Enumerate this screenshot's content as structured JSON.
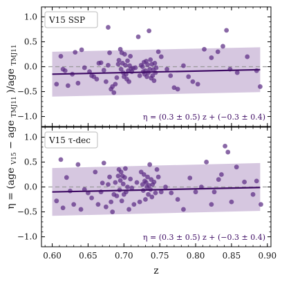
{
  "chart_data": [
    {
      "type": "scatter",
      "panel_label": "V15 SSP",
      "fit_label": "η = (0.3 ± 0.5) z + (−0.3 ± 0.4)",
      "fit_line": {
        "x": [
          0.6,
          0.89
        ],
        "y": [
          -0.15,
          -0.06
        ]
      },
      "band": {
        "x": [
          0.6,
          0.89
        ],
        "upper": [
          0.3,
          0.39
        ],
        "lower": [
          -0.6,
          -0.51
        ]
      },
      "reference_line_y": 0.0,
      "points": [
        [
          0.606,
          -0.35
        ],
        [
          0.612,
          0.21
        ],
        [
          0.615,
          -0.05
        ],
        [
          0.618,
          -0.08
        ],
        [
          0.622,
          -0.38
        ],
        [
          0.628,
          -0.15
        ],
        [
          0.632,
          0.29
        ],
        [
          0.636,
          -0.33
        ],
        [
          0.641,
          0.34
        ],
        [
          0.645,
          -0.02
        ],
        [
          0.652,
          -0.1
        ],
        [
          0.655,
          -0.18
        ],
        [
          0.658,
          -0.2
        ],
        [
          0.662,
          -0.25
        ],
        [
          0.665,
          0.07
        ],
        [
          0.668,
          0.08
        ],
        [
          0.672,
          -0.07
        ],
        [
          0.675,
          -0.3
        ],
        [
          0.678,
          0.03
        ],
        [
          0.678,
          0.79
        ],
        [
          0.68,
          0.28
        ],
        [
          0.682,
          -0.45
        ],
        [
          0.684,
          -0.4
        ],
        [
          0.686,
          -0.52
        ],
        [
          0.688,
          -0.35
        ],
        [
          0.69,
          -0.22
        ],
        [
          0.692,
          0.05
        ],
        [
          0.693,
          0.13
        ],
        [
          0.695,
          0.35
        ],
        [
          0.696,
          -0.05
        ],
        [
          0.697,
          0.28
        ],
        [
          0.698,
          0.07
        ],
        [
          0.699,
          -0.12
        ],
        [
          0.7,
          -0.2
        ],
        [
          0.701,
          0.25
        ],
        [
          0.702,
          0.03
        ],
        [
          0.703,
          -0.15
        ],
        [
          0.704,
          -0.25
        ],
        [
          0.705,
          0.12
        ],
        [
          0.706,
          -0.08
        ],
        [
          0.707,
          -0.3
        ],
        [
          0.708,
          0.02
        ],
        [
          0.709,
          0.21
        ],
        [
          0.71,
          -0.04
        ],
        [
          0.711,
          -0.1
        ],
        [
          0.713,
          -0.03
        ],
        [
          0.716,
          -0.02
        ],
        [
          0.72,
          0.6
        ],
        [
          0.722,
          -0.18
        ],
        [
          0.724,
          0.03
        ],
        [
          0.726,
          0.0
        ],
        [
          0.727,
          -0.1
        ],
        [
          0.728,
          0.09
        ],
        [
          0.729,
          -0.15
        ],
        [
          0.73,
          -0.08
        ],
        [
          0.731,
          0.11
        ],
        [
          0.732,
          -0.2
        ],
        [
          0.733,
          0.04
        ],
        [
          0.734,
          -0.12
        ],
        [
          0.735,
          0.72
        ],
        [
          0.736,
          -0.05
        ],
        [
          0.737,
          0.14
        ],
        [
          0.738,
          -0.23
        ],
        [
          0.739,
          0.05
        ],
        [
          0.74,
          -0.18
        ],
        [
          0.741,
          -0.06
        ],
        [
          0.742,
          -0.28
        ],
        [
          0.743,
          0.07
        ],
        [
          0.744,
          -0.12
        ],
        [
          0.745,
          -0.02
        ],
        [
          0.748,
          0.3
        ],
        [
          0.752,
          0.2
        ],
        [
          0.76,
          -0.05
        ],
        [
          0.765,
          -0.18
        ],
        [
          0.77,
          -0.42
        ],
        [
          0.775,
          -0.45
        ],
        [
          0.783,
          0.02
        ],
        [
          0.79,
          -0.2
        ],
        [
          0.796,
          -0.3
        ],
        [
          0.803,
          -0.35
        ],
        [
          0.812,
          0.35
        ],
        [
          0.822,
          0.18
        ],
        [
          0.831,
          0.3
        ],
        [
          0.838,
          0.41
        ],
        [
          0.843,
          0.73
        ],
        [
          0.848,
          -0.05
        ],
        [
          0.858,
          -0.12
        ],
        [
          0.872,
          0.2
        ],
        [
          0.885,
          -0.08
        ],
        [
          0.89,
          -0.4
        ]
      ],
      "ylim": [
        -1.2,
        1.2
      ],
      "yticks": [
        "−1.0",
        "−0.5",
        "0.0",
        "0.5",
        "1.0"
      ],
      "ytick_values": [
        -1.0,
        -0.5,
        0.0,
        0.5,
        1.0
      ]
    },
    {
      "type": "scatter",
      "panel_label": "V15 τ-dec",
      "fit_label": "η = (0.3 ± 0.5) z + (−0.3 ± 0.4)",
      "fit_line": {
        "x": [
          0.6,
          0.89
        ],
        "y": [
          -0.1,
          -0.01
        ]
      },
      "band": {
        "x": [
          0.6,
          0.89
        ],
        "upper": [
          0.38,
          0.48
        ],
        "lower": [
          -0.58,
          -0.48
        ]
      },
      "reference_line_y": 0.0,
      "points": [
        [
          0.606,
          -0.28
        ],
        [
          0.612,
          0.55
        ],
        [
          0.615,
          -0.42
        ],
        [
          0.62,
          0.19
        ],
        [
          0.625,
          -0.08
        ],
        [
          0.63,
          -0.35
        ],
        [
          0.636,
          0.45
        ],
        [
          0.64,
          -0.45
        ],
        [
          0.645,
          -0.05
        ],
        [
          0.65,
          -0.12
        ],
        [
          0.655,
          -0.22
        ],
        [
          0.66,
          0.3
        ],
        [
          0.664,
          -0.35
        ],
        [
          0.668,
          -0.1
        ],
        [
          0.67,
          0.08
        ],
        [
          0.672,
          0.48
        ],
        [
          0.675,
          -0.4
        ],
        [
          0.678,
          0.05
        ],
        [
          0.68,
          0.2
        ],
        [
          0.682,
          -0.3
        ],
        [
          0.684,
          -0.5
        ],
        [
          0.686,
          -0.15
        ],
        [
          0.688,
          0.09
        ],
        [
          0.69,
          -0.18
        ],
        [
          0.692,
          0.22
        ],
        [
          0.693,
          0.35
        ],
        [
          0.694,
          -0.06
        ],
        [
          0.695,
          0.13
        ],
        [
          0.696,
          0.3
        ],
        [
          0.697,
          -0.28
        ],
        [
          0.698,
          0.22
        ],
        [
          0.699,
          0.06
        ],
        [
          0.7,
          -0.15
        ],
        [
          0.701,
          0.19
        ],
        [
          0.702,
          0.37
        ],
        [
          0.703,
          -0.1
        ],
        [
          0.705,
          0.0
        ],
        [
          0.707,
          -0.45
        ],
        [
          0.709,
          0.16
        ],
        [
          0.711,
          -0.02
        ],
        [
          0.714,
          -0.35
        ],
        [
          0.718,
          0.09
        ],
        [
          0.722,
          -0.3
        ],
        [
          0.724,
          0.3
        ],
        [
          0.726,
          0.05
        ],
        [
          0.727,
          -0.07
        ],
        [
          0.728,
          0.25
        ],
        [
          0.729,
          0.12
        ],
        [
          0.73,
          -0.25
        ],
        [
          0.731,
          0.09
        ],
        [
          0.732,
          0.0
        ],
        [
          0.733,
          0.2
        ],
        [
          0.734,
          -0.15
        ],
        [
          0.735,
          0.03
        ],
        [
          0.736,
          0.45
        ],
        [
          0.737,
          -0.05
        ],
        [
          0.738,
          0.15
        ],
        [
          0.739,
          -0.2
        ],
        [
          0.74,
          0.05
        ],
        [
          0.742,
          0.1
        ],
        [
          0.744,
          -0.12
        ],
        [
          0.746,
          0.35
        ],
        [
          0.748,
          0.2
        ],
        [
          0.752,
          -0.1
        ],
        [
          0.758,
          0.0
        ],
        [
          0.766,
          -0.12
        ],
        [
          0.775,
          -0.25
        ],
        [
          0.783,
          -0.45
        ],
        [
          0.792,
          0.18
        ],
        [
          0.8,
          -0.1
        ],
        [
          0.808,
          0.0
        ],
        [
          0.815,
          0.5
        ],
        [
          0.822,
          -0.35
        ],
        [
          0.826,
          -0.1
        ],
        [
          0.832,
          0.15
        ],
        [
          0.836,
          0.25
        ],
        [
          0.841,
          0.82
        ],
        [
          0.845,
          0.7
        ],
        [
          0.85,
          -0.3
        ],
        [
          0.857,
          0.4
        ],
        [
          0.868,
          0.1
        ],
        [
          0.88,
          -0.15
        ],
        [
          0.885,
          0.12
        ],
        [
          0.891,
          -0.35
        ]
      ],
      "ylim": [
        -1.2,
        1.2
      ],
      "yticks": [
        "−1.0",
        "−0.5",
        "0.0",
        "0.5",
        "1.0"
      ],
      "ytick_values": [
        -1.0,
        -0.5,
        0.0,
        0.5,
        1.0
      ]
    }
  ],
  "axes": {
    "xlabel": "z",
    "ylabel": "η = (age V15 − age TMJ11)/age TMJ11",
    "ylabel_parts": {
      "base": "η = (age",
      "sub1": "V15",
      "minus": " − age",
      "sub2": "TMJ11",
      "close": ")/age",
      "sub3": "TMJ11"
    },
    "xlim": [
      0.585,
      0.905
    ],
    "xticks": [
      "0.60",
      "0.65",
      "0.70",
      "0.75",
      "0.80",
      "0.85",
      "0.90"
    ],
    "xtick_values": [
      0.6,
      0.65,
      0.7,
      0.75,
      0.8,
      0.85,
      0.9
    ],
    "grid": false
  },
  "colors": {
    "point": "#5b2c83",
    "fit_line": "#3d0a63",
    "band": "#c8b4d6",
    "fit_label": "#3d0a63",
    "reference_line": "#999999"
  }
}
